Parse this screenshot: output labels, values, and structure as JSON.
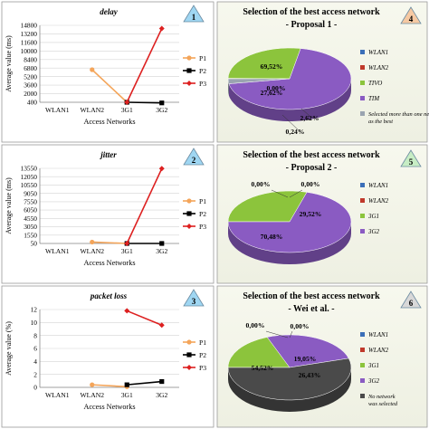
{
  "chart_data": [
    {
      "type": "line",
      "title": "delay",
      "badge": "1",
      "xlabel": "Access Networks",
      "ylabel": "Average value (ms)",
      "categories": [
        "WLAN1",
        "WLAN2",
        "3G1",
        "3G2"
      ],
      "yticks": [
        "400",
        "2000",
        "3600",
        "5200",
        "6800",
        "8400",
        "10000",
        "11600",
        "13200",
        "14800"
      ],
      "ylim": [
        400,
        14800
      ],
      "series": [
        {
          "name": "P1",
          "color": "#f4a55a",
          "marker": "circle",
          "values": [
            null,
            6500,
            400,
            null
          ]
        },
        {
          "name": "P2",
          "color": "#000000",
          "marker": "square",
          "values": [
            null,
            null,
            400,
            280
          ]
        },
        {
          "name": "P3",
          "color": "#dd2020",
          "marker": "diamond",
          "values": [
            null,
            null,
            400,
            14200
          ]
        }
      ]
    },
    {
      "type": "line",
      "title": "jitter",
      "badge": "2",
      "xlabel": "Access Networks",
      "ylabel": "Average value (ms)",
      "categories": [
        "WLAN1",
        "WLAN2",
        "3G1",
        "3G2"
      ],
      "yticks": [
        "50",
        "1550",
        "3050",
        "4550",
        "6050",
        "7550",
        "9050",
        "10550",
        "12050",
        "13550"
      ],
      "ylim": [
        50,
        13550
      ],
      "series": [
        {
          "name": "P1",
          "color": "#f4a55a",
          "marker": "circle",
          "values": [
            null,
            300,
            50,
            null
          ]
        },
        {
          "name": "P2",
          "color": "#000000",
          "marker": "square",
          "values": [
            null,
            null,
            50,
            50
          ]
        },
        {
          "name": "P3",
          "color": "#dd2020",
          "marker": "diamond",
          "values": [
            null,
            null,
            50,
            13500
          ]
        }
      ]
    },
    {
      "type": "line",
      "title": "packet loss",
      "badge": "3",
      "xlabel": "Access Networks",
      "ylabel": "Average value (%)",
      "categories": [
        "WLAN1",
        "WLAN2",
        "3G1",
        "3G2"
      ],
      "yticks": [
        "0",
        "2",
        "4",
        "6",
        "8",
        "10",
        "12"
      ],
      "ylim": [
        0,
        12
      ],
      "series": [
        {
          "name": "P1",
          "color": "#f4a55a",
          "marker": "circle",
          "values": [
            null,
            0.4,
            0.1,
            null
          ]
        },
        {
          "name": "P2",
          "color": "#000000",
          "marker": "square",
          "values": [
            null,
            null,
            0.4,
            0.9
          ]
        },
        {
          "name": "P3",
          "color": "#dd2020",
          "marker": "diamond",
          "values": [
            null,
            null,
            11.8,
            9.6
          ]
        }
      ]
    },
    {
      "type": "pie",
      "title": "Selection of the best access network",
      "subtitle": "- Proposal 1 -",
      "badge": "4",
      "slices": [
        {
          "label": "WLAN1",
          "value": 0.0,
          "text": "0,00%",
          "color": "#3b6fb8"
        },
        {
          "label": "WLAN2",
          "value": 0.24,
          "text": "0,24%",
          "color": "#c0392b"
        },
        {
          "label": "TIVO",
          "value": 27.62,
          "text": "27,62%",
          "color": "#8cc43c"
        },
        {
          "label": "TIM",
          "value": 69.52,
          "text": "69,52%",
          "color": "#8a5bc2"
        },
        {
          "label": "Selected more than one networks as the best",
          "value": 2.62,
          "text": "2,62%",
          "color": "#9aa4b0"
        }
      ]
    },
    {
      "type": "pie",
      "title": "Selection of the best access network",
      "subtitle": "- Proposal 2 -",
      "badge": "5",
      "slices": [
        {
          "label": "WLAN1",
          "value": 0.0,
          "text": "0,00%",
          "color": "#3b6fb8"
        },
        {
          "label": "WLAN2",
          "value": 0.0,
          "text": "0,00%",
          "color": "#c0392b"
        },
        {
          "label": "3G1",
          "value": 29.52,
          "text": "29,52%",
          "color": "#8cc43c"
        },
        {
          "label": "3G2",
          "value": 70.48,
          "text": "70,48%",
          "color": "#8a5bc2"
        }
      ]
    },
    {
      "type": "pie",
      "title": "Selection of the best access network",
      "subtitle": "- Wei et al. -",
      "badge": "6",
      "slices": [
        {
          "label": "WLAN1",
          "value": 0.0,
          "text": "0,00%",
          "color": "#3b6fb8"
        },
        {
          "label": "WLAN2",
          "value": 0.0,
          "text": "0,00%",
          "color": "#c0392b"
        },
        {
          "label": "3G1",
          "value": 19.05,
          "text": "19,05%",
          "color": "#8cc43c"
        },
        {
          "label": "3G2",
          "value": 26.43,
          "text": "26,43%",
          "color": "#8a5bc2"
        },
        {
          "label": "No network was selected",
          "value": 54.52,
          "text": "54,52%",
          "color": "#4a4a4a"
        }
      ]
    }
  ]
}
